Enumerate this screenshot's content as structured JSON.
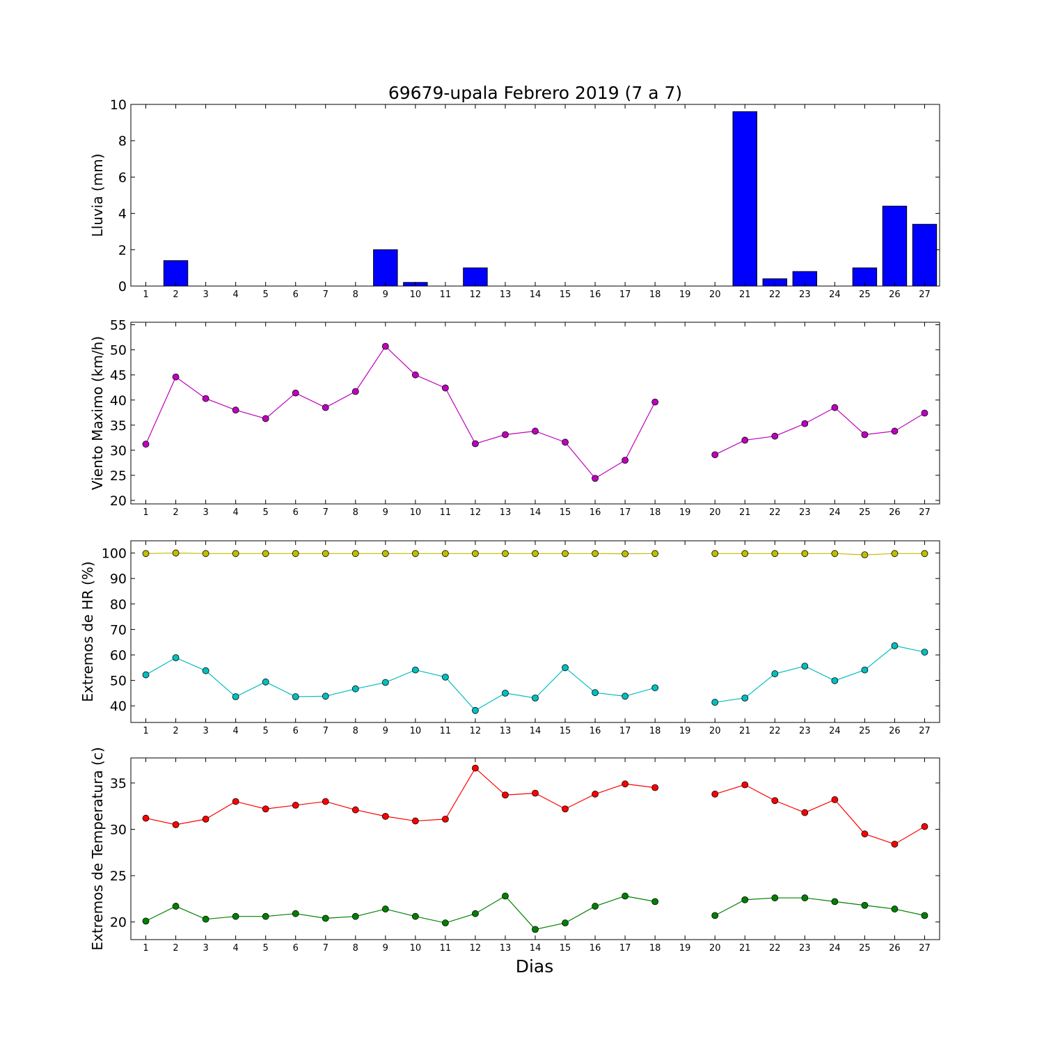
{
  "chart_data": {
    "title": "69679-upala Febrero 2019  (7 a 7)",
    "xlabel": "Dias",
    "days": [
      1,
      2,
      3,
      4,
      5,
      6,
      7,
      8,
      9,
      10,
      11,
      12,
      13,
      14,
      15,
      16,
      17,
      18,
      19,
      20,
      21,
      22,
      23,
      24,
      25,
      26,
      27
    ],
    "panels": [
      {
        "type": "bar",
        "ylabel": "Lluvia (mm)",
        "ylim": [
          0,
          10
        ],
        "yticks": [
          0,
          2,
          4,
          6,
          8,
          10
        ],
        "series": [
          {
            "color": "#0000ff",
            "values": [
              0,
              1.4,
              0,
              0,
              0,
              0,
              0,
              0,
              2.0,
              0.2,
              0,
              1.0,
              0,
              0,
              0,
              0,
              0,
              0,
              0,
              0,
              9.6,
              0.4,
              0.8,
              0,
              1.0,
              4.4,
              3.4
            ]
          }
        ]
      },
      {
        "type": "line",
        "ylabel": "Viento Maximo (km/h)",
        "ylim": [
          19.3,
          55.5
        ],
        "yticks": [
          20,
          25,
          30,
          35,
          40,
          45,
          50,
          55
        ],
        "series": [
          {
            "color": "#bf00bf",
            "values": [
              31.2,
              44.6,
              40.3,
              38.0,
              36.3,
              41.4,
              38.5,
              41.7,
              50.7,
              45.0,
              42.4,
              31.3,
              33.1,
              33.8,
              31.6,
              24.4,
              28.0,
              39.6,
              null,
              29.1,
              32.0,
              32.8,
              35.3,
              38.5,
              33.1,
              33.8,
              37.4
            ]
          }
        ]
      },
      {
        "type": "line",
        "ylabel": "Extremos de HR (%)",
        "ylim": [
          33.5,
          104.8
        ],
        "yticks": [
          40,
          50,
          60,
          70,
          80,
          90,
          100
        ],
        "series": [
          {
            "color": "#bfbf00",
            "values": [
              99.8,
              100,
              99.8,
              99.8,
              99.8,
              99.8,
              99.8,
              99.8,
              99.8,
              99.8,
              99.8,
              99.8,
              99.8,
              99.8,
              99.8,
              99.8,
              99.7,
              99.8,
              null,
              99.8,
              99.8,
              99.8,
              99.8,
              99.8,
              99.3,
              99.8,
              99.8
            ]
          },
          {
            "color": "#00bfbf",
            "values": [
              52.2,
              58.9,
              53.8,
              43.6,
              49.4,
              43.6,
              43.8,
              46.7,
              49.2,
              54.1,
              51.3,
              38.2,
              45.0,
              43.1,
              55.0,
              45.2,
              43.8,
              47.1,
              null,
              41.4,
              43.1,
              52.6,
              55.6,
              49.9,
              54.1,
              63.6,
              61.1
            ]
          }
        ]
      },
      {
        "type": "line",
        "ylabel": "Extremos de Temperatura (c)",
        "ylim": [
          18.1,
          37.7
        ],
        "yticks": [
          20,
          25,
          30,
          35
        ],
        "series": [
          {
            "color": "#ff0000",
            "values": [
              31.2,
              30.5,
              31.1,
              33.0,
              32.2,
              32.6,
              33.0,
              32.1,
              31.4,
              30.9,
              31.1,
              36.6,
              33.7,
              33.9,
              32.2,
              33.8,
              34.9,
              34.5,
              null,
              33.8,
              34.8,
              33.1,
              31.8,
              33.2,
              29.5,
              28.4,
              30.3
            ]
          },
          {
            "color": "#008000",
            "values": [
              20.1,
              21.7,
              20.3,
              20.6,
              20.6,
              20.9,
              20.4,
              20.6,
              21.4,
              20.6,
              19.9,
              20.9,
              22.8,
              19.2,
              19.9,
              21.7,
              22.8,
              22.2,
              null,
              20.7,
              22.4,
              22.6,
              22.6,
              22.2,
              21.8,
              21.4,
              20.7
            ]
          }
        ]
      }
    ]
  }
}
